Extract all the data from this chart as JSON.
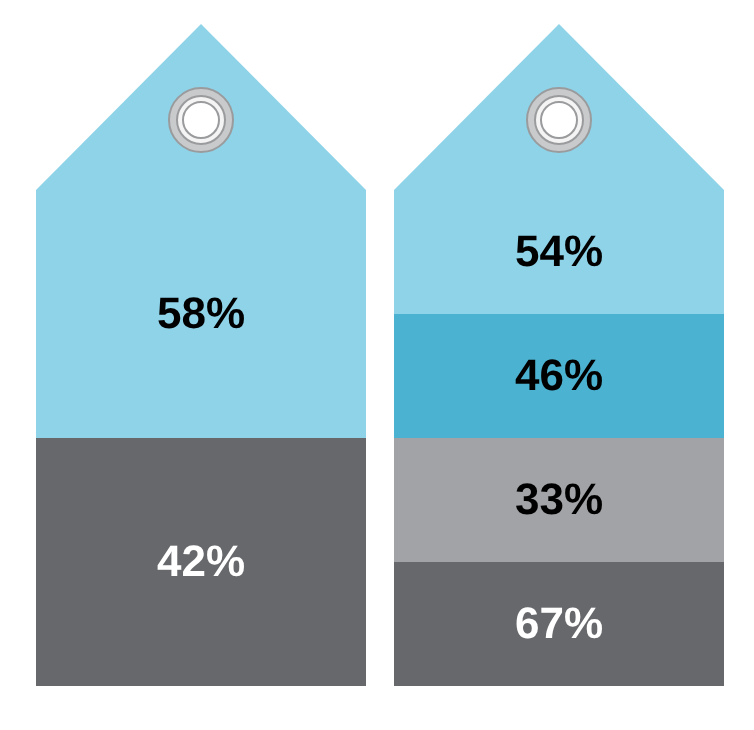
{
  "chart_data": [
    {
      "type": "other",
      "categories": [
        null,
        null
      ],
      "values": [
        58,
        42
      ],
      "value_labels": [
        "58%",
        "42%"
      ],
      "colors": [
        "#8fd3e8",
        "#67686b"
      ]
    },
    {
      "type": "other",
      "categories": [
        null,
        null,
        null,
        null
      ],
      "values": [
        54,
        46,
        33,
        67
      ],
      "value_labels": [
        "54%",
        "46%",
        "33%",
        "67%"
      ],
      "colors": [
        "#8fd3e8",
        "#4bb3d1",
        "#a2a3a6",
        "#67686b"
      ]
    }
  ]
}
